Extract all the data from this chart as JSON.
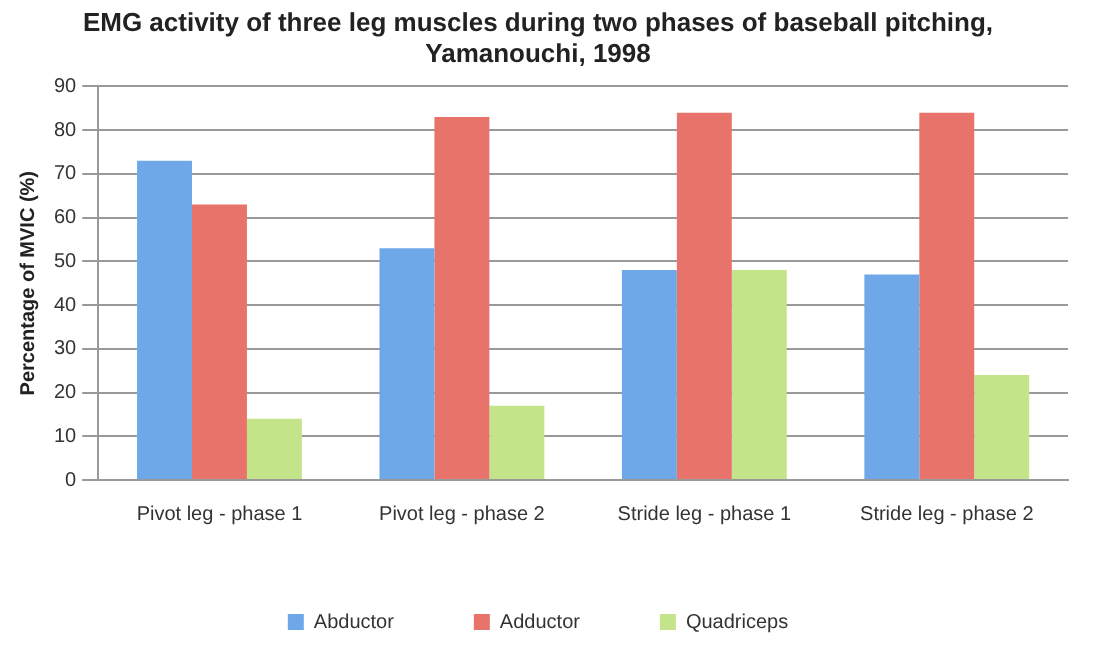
{
  "chart_data": {
    "type": "bar",
    "title": "EMG activity of three leg muscles during two phases of baseball pitching, Yamanouchi, 1998",
    "ylabel": "Percentage of MVIC (%)",
    "categories": [
      "Pivot leg - phase 1",
      "Pivot leg - phase 2",
      "Stride leg - phase 1",
      "Stride leg - phase 2"
    ],
    "series": [
      {
        "name": "Abductor",
        "color": "#6fa8e8",
        "values": [
          73,
          53,
          48,
          47
        ]
      },
      {
        "name": "Adductor",
        "color": "#e8736b",
        "values": [
          63,
          83,
          84,
          84
        ]
      },
      {
        "name": "Quadriceps",
        "color": "#c4e48a",
        "values": [
          14,
          17,
          48,
          24
        ]
      }
    ],
    "ylim": [
      0,
      90
    ],
    "yticks": [
      0,
      10,
      20,
      30,
      40,
      50,
      60,
      70,
      80,
      90
    ],
    "grid": "y",
    "legend": "bottom"
  }
}
